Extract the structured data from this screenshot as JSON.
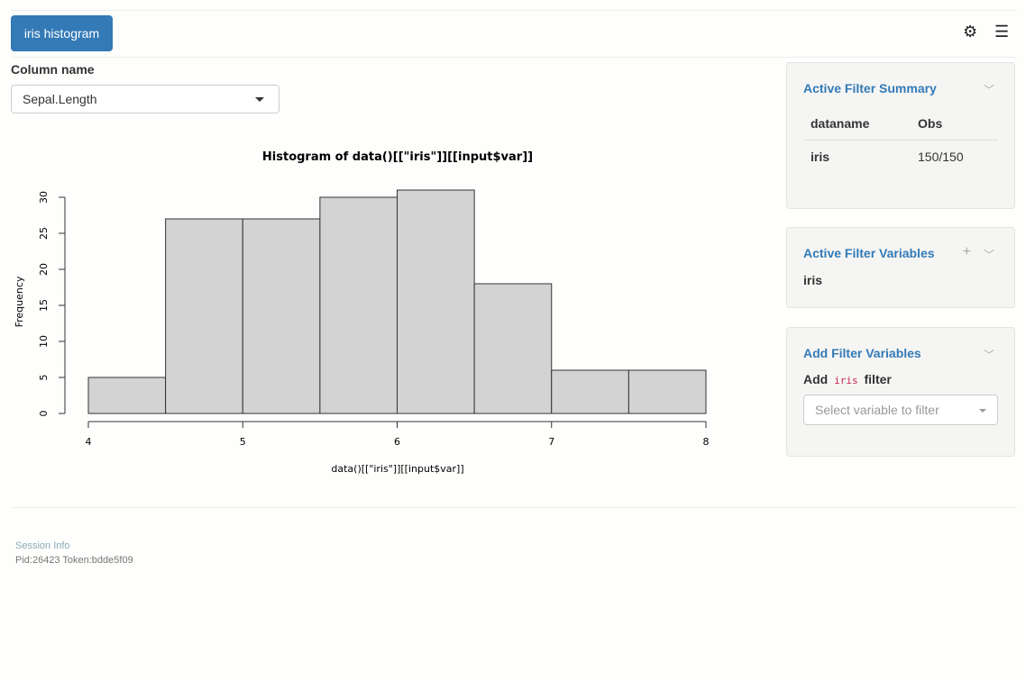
{
  "header": {
    "tab_label": "iris histogram",
    "settings_icon": "gear-icon",
    "menu_icon": "hamburger-icon"
  },
  "column_select": {
    "label": "Column name",
    "value": "Sepal.Length"
  },
  "chart_data": {
    "type": "bar",
    "title": "Histogram of data()[[\"iris\"]][[input$var]]",
    "xlabel": "data()[[\"iris\"]][[input$var]]",
    "ylabel": "Frequency",
    "bin_edges": [
      4,
      4.5,
      5,
      5.5,
      6,
      6.5,
      7,
      7.5,
      8
    ],
    "values": [
      5,
      27,
      27,
      30,
      31,
      18,
      6,
      6
    ],
    "xlim": [
      4,
      8
    ],
    "ylim": [
      0,
      31
    ],
    "xticks": [
      4,
      5,
      6,
      7,
      8
    ],
    "yticks": [
      0,
      5,
      10,
      15,
      20,
      25,
      30
    ],
    "bar_color": "#d3d3d3",
    "grid": false
  },
  "filter_summary": {
    "title": "Active Filter Summary",
    "headers": [
      "dataname",
      "Obs"
    ],
    "rows": [
      [
        "iris",
        "150/150"
      ]
    ]
  },
  "filter_vars": {
    "title": "Active Filter Variables",
    "dataset": "iris"
  },
  "add_filter": {
    "title": "Add Filter Variables",
    "prefix": "Add",
    "dataset": "iris",
    "suffix": "filter",
    "placeholder": "Select variable to filter"
  },
  "footer": {
    "session_label": "Session Info",
    "pid": "Pid:26423 Token:bdde5f09"
  }
}
